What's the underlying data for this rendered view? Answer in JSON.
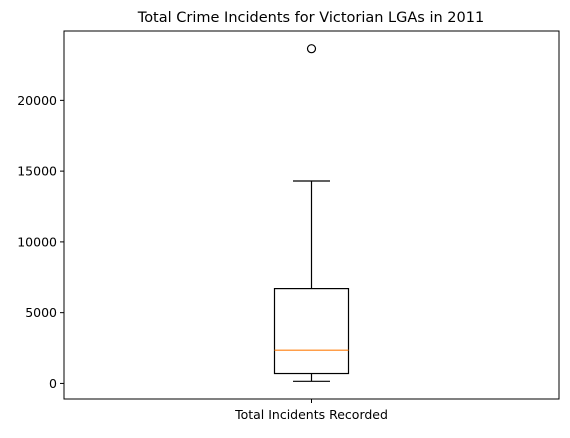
{
  "chart_data": {
    "type": "boxplot",
    "title": "Total Crime Incidents for Victorian LGAs in 2011",
    "xlabel": "",
    "ylabel": "",
    "categories": [
      "Total Incidents Recorded"
    ],
    "boxes": [
      {
        "name": "Total Incidents Recorded",
        "whisker_low": 150,
        "q1": 700,
        "median": 2350,
        "q3": 6700,
        "whisker_high": 14300,
        "outliers": [
          23650
        ]
      }
    ],
    "ylim": [
      -1100,
      24900
    ],
    "yticks": [
      0,
      5000,
      10000,
      15000,
      20000
    ],
    "ytick_labels": [
      "0",
      "5000",
      "10000",
      "15000",
      "20000"
    ],
    "grid": false,
    "colors": {
      "box": "#000000",
      "median": "#ff7f0e",
      "flier": "#000000",
      "axes": "#000000"
    }
  }
}
